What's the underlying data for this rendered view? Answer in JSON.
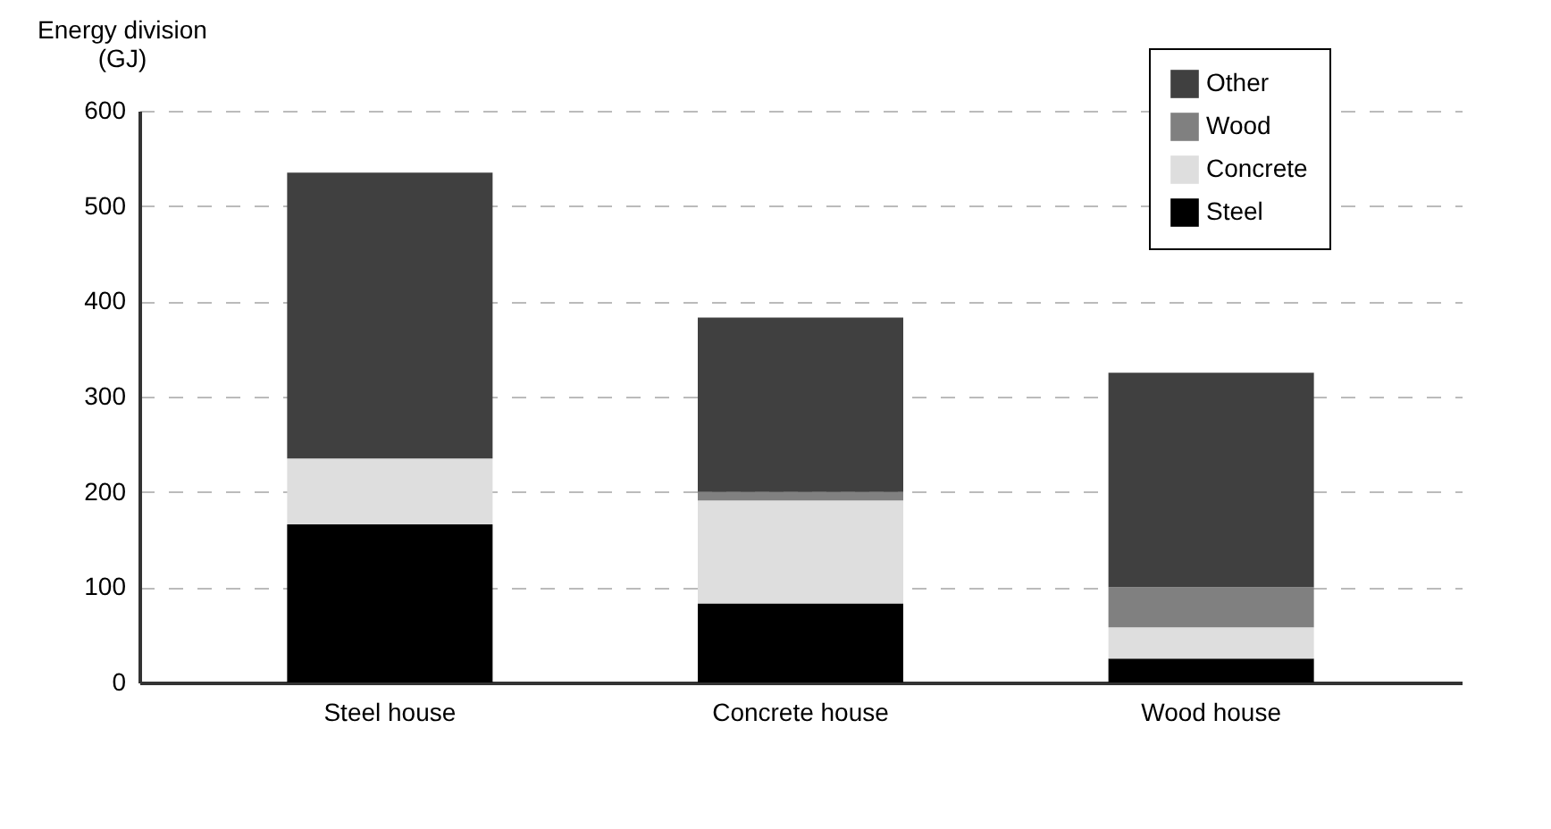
{
  "chart_data": {
    "type": "bar",
    "stacked": true,
    "ylabel": "Energy division\n(GJ)",
    "categories": [
      "Steel house",
      "Concrete house",
      "Wood house"
    ],
    "series": [
      {
        "name": "Steel",
        "color": "#000000",
        "values": [
          166,
          83,
          25
        ]
      },
      {
        "name": "Concrete",
        "color": "#dedede",
        "values": [
          69,
          108,
          33
        ]
      },
      {
        "name": "Wood",
        "color": "#808080",
        "values": [
          0,
          9,
          42
        ]
      },
      {
        "name": "Other",
        "color": "#404040",
        "values": [
          300,
          183,
          225
        ]
      }
    ],
    "ylim": [
      0,
      600
    ],
    "yticks": [
      0,
      100,
      200,
      300,
      400,
      500,
      600
    ],
    "grid": "y",
    "legend": "top right"
  }
}
